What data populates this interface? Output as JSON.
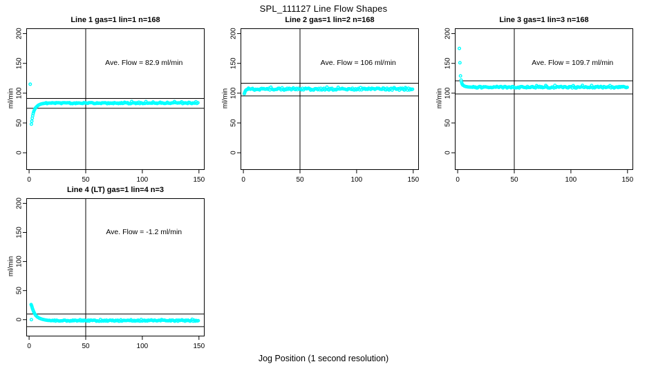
{
  "figure": {
    "title": "SPL_111127  Line Flow Shapes",
    "xlabel": "Jog Position (1 second resolution)",
    "point_color": "#00FFFF",
    "axis_color": "#000000",
    "background": "#FFFFFF"
  },
  "chart_data": [
    {
      "type": "scatter",
      "title": "Line 1 gas=1 lin=1 n=168",
      "gas": 1,
      "lin": 1,
      "n": 168,
      "ylabel": "ml/min",
      "annotation": "Ave. Flow =  82.9  ml/min",
      "ave_flow_ml_min": 82.9,
      "xlim": [
        -2.5,
        155
      ],
      "ylim": [
        -28.8,
        208.8
      ],
      "xticks": [
        0,
        50,
        100,
        150
      ],
      "yticks": [
        0,
        50,
        100,
        150,
        200
      ],
      "vline_x": 50,
      "hlines": [
        91.2,
        74.6
      ],
      "transient_points": [
        [
          1,
          115
        ],
        [
          2,
          48
        ],
        [
          2.4,
          53
        ],
        [
          2.8,
          58
        ],
        [
          3.2,
          62
        ],
        [
          3.6,
          65.5
        ],
        [
          4,
          68.5
        ],
        [
          4.5,
          71
        ],
        [
          5,
          73
        ],
        [
          5.5,
          74.7
        ],
        [
          6,
          76
        ],
        [
          7,
          78
        ],
        [
          8,
          79.5
        ],
        [
          9,
          80.6
        ],
        [
          10,
          81.4
        ],
        [
          11,
          82
        ],
        [
          12,
          82.4
        ],
        [
          13,
          82.7
        ],
        [
          14,
          83
        ]
      ],
      "steady_band": {
        "x_from": 15,
        "x_to": 150,
        "x_step": 0.9,
        "y": 83.2,
        "jitter": 0.9,
        "spikes": {
          "x_from": 80,
          "amplitude": 2.2,
          "period": 7
        }
      }
    },
    {
      "type": "scatter",
      "title": "Line 2 gas=1 lin=2 n=168",
      "gas": 1,
      "lin": 2,
      "n": 168,
      "ylabel": "ml/min",
      "annotation": "Ave. Flow =  106  ml/min",
      "ave_flow_ml_min": 106,
      "xlim": [
        -2.5,
        155
      ],
      "ylim": [
        -28.8,
        208.8
      ],
      "xticks": [
        0,
        50,
        100,
        150
      ],
      "yticks": [
        0,
        50,
        100,
        150,
        200
      ],
      "vline_x": 50,
      "hlines": [
        116.6,
        95.4
      ],
      "transient_points": [
        [
          0.8,
          99
        ],
        [
          1.2,
          101
        ],
        [
          1.6,
          103
        ],
        [
          2,
          104.5
        ],
        [
          2.5,
          105.5
        ],
        [
          3,
          106
        ],
        [
          3.5,
          106.4
        ],
        [
          4,
          106.6
        ]
      ],
      "steady_band": {
        "x_from": 4.5,
        "x_to": 150,
        "x_step": 0.9,
        "y": 106.8,
        "jitter": 1.7,
        "spikes": {
          "x_from": 20,
          "amplitude": 2.0,
          "period": 11
        }
      }
    },
    {
      "type": "scatter",
      "title": "Line 3 gas=1 lin=3 n=168",
      "gas": 1,
      "lin": 3,
      "n": 168,
      "ylabel": "ml/min",
      "annotation": "Ave. Flow =  109.7  ml/min",
      "ave_flow_ml_min": 109.7,
      "xlim": [
        -2.5,
        155
      ],
      "ylim": [
        -28.8,
        208.8
      ],
      "xticks": [
        0,
        50,
        100,
        150
      ],
      "yticks": [
        0,
        50,
        100,
        150,
        200
      ],
      "vline_x": 50,
      "hlines": [
        120.7,
        98.7
      ],
      "transient_points": [
        [
          1.5,
          175
        ],
        [
          2,
          151
        ],
        [
          2.5,
          129
        ],
        [
          3,
          122
        ],
        [
          3.4,
          118.5
        ],
        [
          3.8,
          116
        ],
        [
          4.2,
          114.5
        ],
        [
          4.6,
          113.5
        ],
        [
          5,
          113
        ],
        [
          6,
          111.8
        ],
        [
          7,
          111.2
        ],
        [
          8,
          110.8
        ],
        [
          9,
          110.5
        ],
        [
          10,
          110.3
        ],
        [
          11,
          110.2
        ],
        [
          12,
          110.1
        ]
      ],
      "steady_band": {
        "x_from": 13,
        "x_to": 150,
        "x_step": 0.9,
        "y": 110,
        "jitter": 1.3,
        "spikes": {
          "x_from": 55,
          "amplitude": 2.0,
          "period": 9
        }
      }
    },
    {
      "type": "scatter",
      "title": "Line 4 (LT) gas=1 lin=4 n=3",
      "gas": 1,
      "lin": 4,
      "n": 3,
      "ylabel": "ml/min",
      "annotation": "Ave. Flow =  -1.2  ml/min",
      "ave_flow_ml_min": -1.2,
      "xlim": [
        -2.5,
        155
      ],
      "ylim": [
        -28.8,
        208.8
      ],
      "xticks": [
        0,
        50,
        100,
        150
      ],
      "yticks": [
        0,
        50,
        100,
        150,
        200
      ],
      "vline_x": 50,
      "hlines": [
        9.6,
        -12.0
      ],
      "transient_points": [
        [
          2,
          0
        ],
        [
          1.8,
          26
        ],
        [
          2.1,
          24.5
        ],
        [
          2.4,
          23
        ],
        [
          2.7,
          21
        ],
        [
          3,
          19
        ],
        [
          3.4,
          17
        ],
        [
          3.8,
          15
        ],
        [
          4.2,
          13
        ],
        [
          4.6,
          11.5
        ],
        [
          5,
          10
        ],
        [
          5.5,
          8.5
        ],
        [
          6,
          7
        ],
        [
          7,
          5
        ],
        [
          8,
          3.7
        ],
        [
          9,
          2.6
        ],
        [
          10,
          1.8
        ],
        [
          11,
          1.1
        ],
        [
          12,
          0.5
        ],
        [
          13,
          0
        ],
        [
          14,
          -0.4
        ],
        [
          15,
          -0.8
        ],
        [
          16,
          -1.1
        ],
        [
          17,
          -1.4
        ]
      ],
      "steady_band": {
        "x_from": 18,
        "x_to": 150,
        "x_step": 0.9,
        "y": -1.7,
        "jitter": 1.0,
        "spikes": {
          "x_from": 40,
          "amplitude": 1.6,
          "period": 10
        }
      }
    }
  ]
}
